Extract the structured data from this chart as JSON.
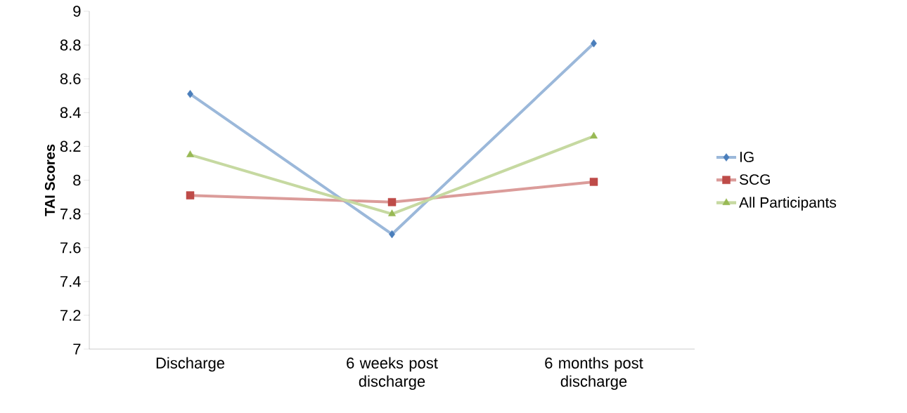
{
  "chart_data": {
    "type": "line",
    "ylabel": "TAI Scores",
    "categories": [
      "Discharge",
      "6 weeks post discharge",
      "6 months post discharge"
    ],
    "series": [
      {
        "name": "IG",
        "color": "#4a7ebb",
        "marker": "diamond",
        "values": [
          8.51,
          7.68,
          8.81
        ]
      },
      {
        "name": "SCG",
        "color": "#be4b48",
        "marker": "square",
        "values": [
          7.91,
          7.87,
          7.99
        ]
      },
      {
        "name": "All Participants",
        "color": "#98b954",
        "marker": "triangle",
        "values": [
          8.15,
          7.8,
          8.26
        ]
      }
    ],
    "ylim": [
      7,
      9
    ],
    "yticks": [
      7,
      7.2,
      7.4,
      7.6,
      7.8,
      8,
      8.2,
      8.4,
      8.6,
      8.8,
      9
    ],
    "grid": false,
    "legend": "right",
    "line_style": "solid"
  }
}
